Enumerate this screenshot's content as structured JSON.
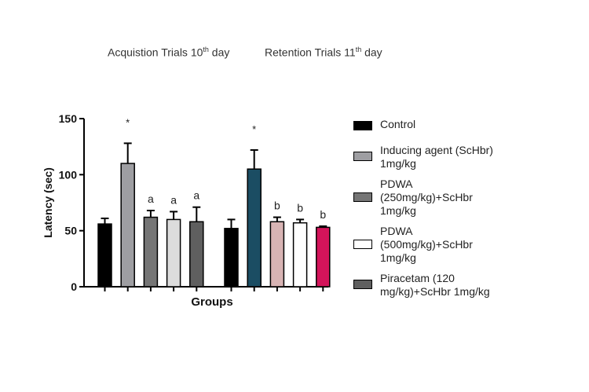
{
  "titles": {
    "acquisition": {
      "text": "Acquistion Trials 10",
      "sup": "th",
      "suffix": " day"
    },
    "retention": {
      "text": "Retention Trials 11",
      "sup": "th",
      "suffix": " day"
    }
  },
  "chart_data": {
    "type": "bar",
    "title": "",
    "xlabel": "Groups",
    "ylabel": "Latency (sec)",
    "ylim": [
      0,
      150
    ],
    "yticks": [
      0,
      50,
      100,
      150
    ],
    "groups": [
      {
        "name": "Acquistion Trials 10th day",
        "bars": [
          {
            "series": "Control",
            "value": 56,
            "error": 5,
            "label": "",
            "color": "#000000"
          },
          {
            "series": "Inducing agent (ScHbr) 1mg/kg",
            "value": 110,
            "error": 18,
            "label": "*",
            "color": "#9e9ea2"
          },
          {
            "series": "PDWA (250mg/kg)+ScHbr 1mg/kg",
            "value": 62,
            "error": 6,
            "label": "a",
            "color": "#757575"
          },
          {
            "series": "PDWA (500mg/kg)+ScHbr 1mg/kg",
            "value": 60,
            "error": 7,
            "label": "a",
            "color": "#dcdcdc"
          },
          {
            "series": "Piracetam (120 mg/kg)+ScHbr 1mg/kg",
            "value": 58,
            "error": 13,
            "label": "a",
            "color": "#5f5f5f"
          }
        ]
      },
      {
        "name": "Retention Trials 11th day",
        "bars": [
          {
            "series": "Control",
            "value": 52,
            "error": 8,
            "label": "",
            "color": "#000000"
          },
          {
            "series": "Inducing agent (ScHbr) 1mg/kg",
            "value": 105,
            "error": 17,
            "label": "*",
            "color": "#1b4d63"
          },
          {
            "series": "PDWA (250mg/kg)+ScHbr 1mg/kg",
            "value": 58,
            "error": 4,
            "label": "b",
            "color": "#d8b4b4"
          },
          {
            "series": "PDWA (500mg/kg)+ScHbr 1mg/kg",
            "value": 57,
            "error": 3,
            "label": "b",
            "color": "#ffffff"
          },
          {
            "series": "Piracetam (120 mg/kg)+ScHbr 1mg/kg",
            "value": 53,
            "error": 1,
            "label": "b",
            "color": "#d4145a"
          }
        ]
      }
    ],
    "legend": {
      "position": "right",
      "entries": [
        {
          "lines": [
            "Control"
          ],
          "color": "#000000"
        },
        {
          "lines": [
            "Inducing agent (ScHbr)",
            "1mg/kg"
          ],
          "color": "#9e9ea2"
        },
        {
          "lines": [
            "PDWA",
            "(250mg/kg)+ScHbr",
            "1mg/kg"
          ],
          "color": "#757575"
        },
        {
          "lines": [
            "PDWA",
            "(500mg/kg)+ScHbr",
            "1mg/kg"
          ],
          "color": "#ffffff"
        },
        {
          "lines": [
            "Piracetam (120",
            "mg/kg)+ScHbr 1mg/kg"
          ],
          "color": "#5f5f5f"
        }
      ]
    },
    "grid": false
  }
}
